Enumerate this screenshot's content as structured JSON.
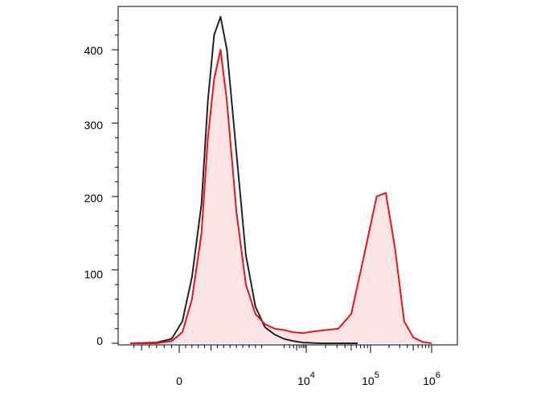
{
  "chart_data": {
    "type": "area",
    "title": "",
    "xlabel": "",
    "ylabel": "",
    "x_scale": "biexponential",
    "x_tick_labels": [
      {
        "label": "0",
        "exp": ""
      },
      {
        "label": "10",
        "exp": "4"
      },
      {
        "label": "10",
        "exp": "5"
      },
      {
        "label": "10",
        "exp": "6"
      }
    ],
    "y_tick_labels": [
      "0",
      "100",
      "200",
      "300",
      "400"
    ],
    "ylim": [
      0,
      460
    ],
    "grid": false,
    "legend": "none",
    "colors": {
      "control": "#222222",
      "stained": "#e8141c",
      "stained_fill": "#fde4e4"
    },
    "series": [
      {
        "x": [
          -1.3,
          -0.6,
          -0.2,
          0.1,
          0.4,
          0.7,
          0.9,
          1.1,
          1.3,
          1.5,
          1.8,
          2.1,
          2.4,
          2.7,
          3.0,
          3.3,
          3.6,
          3.9,
          4.2,
          4.5,
          4.8
        ],
        "y": [
          0,
          1,
          6,
          30,
          90,
          190,
          330,
          420,
          445,
          400,
          260,
          120,
          50,
          22,
          12,
          6,
          3,
          1,
          0,
          0,
          0
        ]
      },
      {
        "x": [
          -1.3,
          -0.6,
          -0.2,
          0.1,
          0.4,
          0.7,
          0.9,
          1.1,
          1.3,
          1.5,
          1.8,
          2.1,
          2.4,
          2.7,
          3.0,
          3.3,
          3.6,
          3.9,
          4.1,
          4.3,
          4.5,
          4.7,
          4.9,
          5.1,
          5.25,
          5.4,
          5.55,
          5.7,
          5.85,
          6.0
        ],
        "y": [
          0,
          0,
          3,
          15,
          60,
          150,
          280,
          360,
          400,
          330,
          180,
          80,
          40,
          26,
          20,
          18,
          15,
          14,
          16,
          18,
          20,
          40,
          120,
          200,
          205,
          130,
          30,
          8,
          2,
          0
        ]
      }
    ]
  }
}
